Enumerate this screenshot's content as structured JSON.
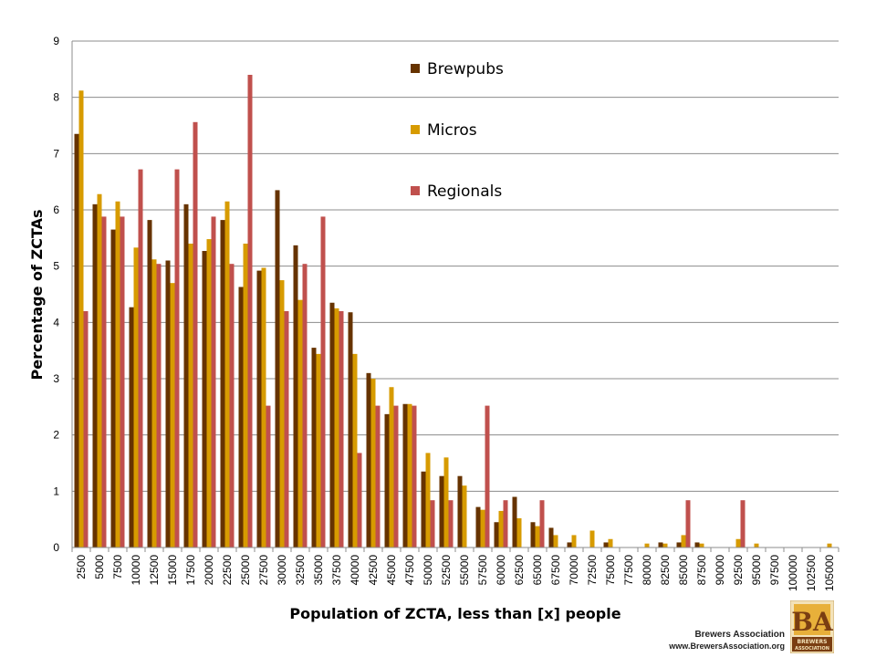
{
  "chart_data": {
    "type": "bar",
    "title": "",
    "xlabel": "Population of ZCTA, less than [x] people",
    "ylabel": "Percentage of ZCTAs",
    "ylim": [
      0,
      9
    ],
    "yticks": [
      "0",
      "1",
      "2",
      "3",
      "4",
      "5",
      "6",
      "7",
      "8",
      "9"
    ],
    "grid": true,
    "legend_position": "top-center",
    "categories": [
      "2500",
      "5000",
      "7500",
      "10000",
      "12500",
      "15000",
      "17500",
      "20000",
      "22500",
      "25000",
      "27500",
      "30000",
      "32500",
      "35000",
      "37500",
      "40000",
      "42500",
      "45000",
      "47500",
      "50000",
      "52500",
      "55000",
      "57500",
      "60000",
      "62500",
      "65000",
      "67500",
      "70000",
      "72500",
      "75000",
      "77500",
      "80000",
      "82500",
      "85000",
      "87500",
      "90000",
      "92500",
      "95000",
      "97500",
      "100000",
      "102500",
      "105000"
    ],
    "series": [
      {
        "name": "Brewpubs",
        "color": "#663300",
        "values": [
          7.35,
          6.1,
          5.65,
          4.27,
          5.82,
          5.1,
          6.1,
          5.27,
          5.82,
          4.63,
          4.92,
          6.35,
          5.37,
          3.55,
          4.35,
          4.18,
          3.1,
          2.37,
          2.55,
          1.35,
          1.27,
          1.27,
          0.72,
          0.45,
          0.9,
          0.45,
          0.35,
          0.09,
          0,
          0.09,
          0,
          0,
          0.09,
          0.09,
          0.09,
          0,
          0,
          0,
          0,
          0,
          0,
          0
        ]
      },
      {
        "name": "Micros",
        "color": "#D79B00",
        "values": [
          8.12,
          6.28,
          6.15,
          5.33,
          5.12,
          4.7,
          5.4,
          5.48,
          6.15,
          5.4,
          4.97,
          4.75,
          4.4,
          3.44,
          4.25,
          3.44,
          3.0,
          2.85,
          2.55,
          1.68,
          1.6,
          1.1,
          0.67,
          0.65,
          0.52,
          0.38,
          0.22,
          0.22,
          0.3,
          0.15,
          0,
          0.07,
          0.07,
          0.22,
          0.07,
          0,
          0.15,
          0.07,
          0,
          0,
          0,
          0.07
        ]
      },
      {
        "name": "Regionals",
        "color": "#C0504D",
        "values": [
          4.2,
          5.88,
          5.88,
          6.72,
          5.04,
          6.72,
          7.56,
          5.88,
          5.04,
          8.4,
          2.52,
          4.2,
          5.04,
          5.88,
          4.2,
          1.68,
          2.52,
          2.52,
          2.52,
          0.84,
          0.84,
          0,
          2.52,
          0.84,
          0,
          0.84,
          0,
          0,
          0,
          0,
          0,
          0,
          0,
          0.84,
          0,
          0,
          0.84,
          0,
          0,
          0,
          0,
          0
        ]
      }
    ]
  },
  "branding": {
    "name": "Brewers Association",
    "url": "www.BrewersAssociation.org",
    "logo_letters": "BA",
    "logo_word_1": "BREWERS",
    "logo_word_2": "ASSOCIATION"
  }
}
